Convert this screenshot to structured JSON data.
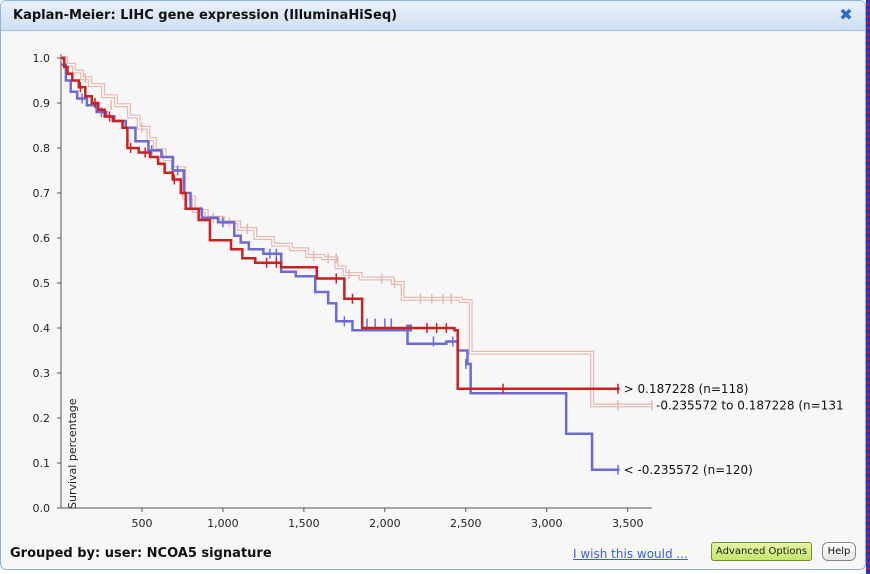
{
  "window": {
    "title": "Kaplan-Meier: LIHC gene expression (IlluminaHiSeq)",
    "close_glyph": "✖"
  },
  "footer": {
    "grouped_by": "Grouped by: user: NCOA5 signature",
    "wish_link": "I wish this would ...",
    "advanced_options": "Advanced Options",
    "help": "Help"
  },
  "chart_data": {
    "type": "line",
    "title": "",
    "xlabel": "",
    "ylabel": "Survival percentage",
    "xlim": [
      0,
      3650
    ],
    "ylim": [
      0,
      1.0
    ],
    "x_ticks": [
      500,
      1000,
      1500,
      2000,
      2500,
      3000,
      3500
    ],
    "x_tick_labels": [
      "500",
      "1,000",
      "1,500",
      "2,000",
      "2,500",
      "3,000",
      "3,500"
    ],
    "y_ticks": [
      0,
      0.1,
      0.2,
      0.3,
      0.4,
      0.5,
      0.6,
      0.7,
      0.8,
      0.9,
      1.0
    ],
    "y_tick_labels": [
      "0.0",
      "0.1",
      "0.2",
      "0.3",
      "0.4",
      "0.5",
      "0.6",
      "0.7",
      "0.8",
      "0.9",
      "1.0"
    ],
    "grid": false,
    "series": [
      {
        "name": "> 0.187228 (n=118)",
        "color": "#cc1f1f",
        "double_line": false,
        "steps": [
          [
            0,
            1.0
          ],
          [
            20,
            0.98
          ],
          [
            40,
            0.965
          ],
          [
            70,
            0.95
          ],
          [
            110,
            0.935
          ],
          [
            150,
            0.915
          ],
          [
            190,
            0.9
          ],
          [
            230,
            0.885
          ],
          [
            270,
            0.87
          ],
          [
            320,
            0.86
          ],
          [
            380,
            0.845
          ],
          [
            410,
            0.8
          ],
          [
            480,
            0.79
          ],
          [
            550,
            0.78
          ],
          [
            600,
            0.765
          ],
          [
            640,
            0.745
          ],
          [
            690,
            0.73
          ],
          [
            740,
            0.7
          ],
          [
            770,
            0.665
          ],
          [
            850,
            0.64
          ],
          [
            920,
            0.595
          ],
          [
            1050,
            0.575
          ],
          [
            1120,
            0.555
          ],
          [
            1200,
            0.545
          ],
          [
            1360,
            0.535
          ],
          [
            1580,
            0.51
          ],
          [
            1750,
            0.465
          ],
          [
            1860,
            0.4
          ],
          [
            2430,
            0.395
          ],
          [
            2450,
            0.265
          ],
          [
            3450,
            0.265
          ]
        ],
        "censors": [
          [
            120,
            0.935
          ],
          [
            210,
            0.9
          ],
          [
            300,
            0.87
          ],
          [
            430,
            0.8
          ],
          [
            520,
            0.79
          ],
          [
            700,
            0.73
          ],
          [
            1270,
            0.545
          ],
          [
            1330,
            0.545
          ],
          [
            1700,
            0.51
          ],
          [
            1800,
            0.465
          ],
          [
            2260,
            0.4
          ],
          [
            2320,
            0.4
          ],
          [
            2380,
            0.4
          ],
          [
            2730,
            0.265
          ],
          [
            3440,
            0.265
          ]
        ],
        "label_at": [
          3450,
          0.265
        ]
      },
      {
        "name": "-0.235572 to 0.187228 (n=131",
        "color": "#e8b8b2",
        "double_line": true,
        "steps": [
          [
            0,
            1.0
          ],
          [
            30,
            0.985
          ],
          [
            80,
            0.97
          ],
          [
            130,
            0.955
          ],
          [
            180,
            0.94
          ],
          [
            260,
            0.915
          ],
          [
            340,
            0.895
          ],
          [
            420,
            0.87
          ],
          [
            480,
            0.845
          ],
          [
            540,
            0.82
          ],
          [
            580,
            0.795
          ],
          [
            640,
            0.775
          ],
          [
            690,
            0.755
          ],
          [
            760,
            0.69
          ],
          [
            820,
            0.66
          ],
          [
            900,
            0.645
          ],
          [
            1000,
            0.635
          ],
          [
            1100,
            0.62
          ],
          [
            1200,
            0.6
          ],
          [
            1310,
            0.585
          ],
          [
            1420,
            0.575
          ],
          [
            1520,
            0.56
          ],
          [
            1620,
            0.555
          ],
          [
            1700,
            0.535
          ],
          [
            1750,
            0.52
          ],
          [
            1850,
            0.51
          ],
          [
            2050,
            0.5
          ],
          [
            2110,
            0.465
          ],
          [
            2470,
            0.46
          ],
          [
            2530,
            0.345
          ],
          [
            3260,
            0.345
          ],
          [
            3280,
            0.228
          ],
          [
            3650,
            0.228
          ]
        ],
        "censors": [
          [
            150,
            0.955
          ],
          [
            310,
            0.895
          ],
          [
            500,
            0.845
          ],
          [
            860,
            0.66
          ],
          [
            940,
            0.645
          ],
          [
            1040,
            0.635
          ],
          [
            1150,
            0.62
          ],
          [
            1560,
            0.56
          ],
          [
            1650,
            0.555
          ],
          [
            1700,
            0.555
          ],
          [
            1780,
            0.52
          ],
          [
            1980,
            0.51
          ],
          [
            2060,
            0.5
          ],
          [
            2220,
            0.465
          ],
          [
            2290,
            0.465
          ],
          [
            2360,
            0.465
          ],
          [
            2410,
            0.465
          ],
          [
            3440,
            0.228
          ],
          [
            3650,
            0.228
          ]
        ],
        "label_at": [
          3650,
          0.228
        ]
      },
      {
        "name": "< -0.235572 (n=120)",
        "color": "#6b6bd6",
        "double_line": false,
        "steps": [
          [
            0,
            0.985
          ],
          [
            30,
            0.95
          ],
          [
            60,
            0.925
          ],
          [
            100,
            0.91
          ],
          [
            160,
            0.895
          ],
          [
            220,
            0.88
          ],
          [
            280,
            0.87
          ],
          [
            330,
            0.86
          ],
          [
            400,
            0.845
          ],
          [
            460,
            0.815
          ],
          [
            540,
            0.795
          ],
          [
            620,
            0.78
          ],
          [
            690,
            0.75
          ],
          [
            760,
            0.7
          ],
          [
            800,
            0.665
          ],
          [
            870,
            0.645
          ],
          [
            970,
            0.635
          ],
          [
            1070,
            0.605
          ],
          [
            1110,
            0.59
          ],
          [
            1160,
            0.575
          ],
          [
            1250,
            0.565
          ],
          [
            1360,
            0.525
          ],
          [
            1450,
            0.515
          ],
          [
            1570,
            0.48
          ],
          [
            1650,
            0.455
          ],
          [
            1700,
            0.415
          ],
          [
            1800,
            0.395
          ],
          [
            2160,
            0.405
          ],
          [
            2140,
            0.365
          ],
          [
            2380,
            0.37
          ],
          [
            2450,
            0.35
          ],
          [
            2510,
            0.32
          ],
          [
            2530,
            0.255
          ],
          [
            3100,
            0.255
          ],
          [
            3120,
            0.165
          ],
          [
            3260,
            0.165
          ],
          [
            3280,
            0.085
          ],
          [
            3450,
            0.085
          ]
        ],
        "censors": [
          [
            130,
            0.91
          ],
          [
            250,
            0.88
          ],
          [
            560,
            0.795
          ],
          [
            720,
            0.75
          ],
          [
            1000,
            0.635
          ],
          [
            1290,
            0.565
          ],
          [
            1330,
            0.565
          ],
          [
            1750,
            0.415
          ],
          [
            1890,
            0.41
          ],
          [
            1940,
            0.41
          ],
          [
            2000,
            0.41
          ],
          [
            2040,
            0.41
          ],
          [
            2300,
            0.37
          ],
          [
            2420,
            0.37
          ],
          [
            2500,
            0.32
          ],
          [
            3440,
            0.085
          ]
        ],
        "label_at": [
          3450,
          0.085
        ]
      }
    ]
  }
}
